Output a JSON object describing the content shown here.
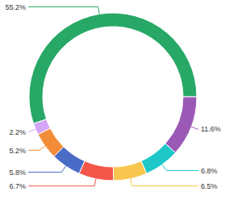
{
  "chart_data": {
    "type": "pie",
    "values": [
      55.2,
      11.6,
      6.8,
      6.5,
      6.7,
      5.8,
      5.2,
      2.2
    ],
    "value_labels": [
      "55.2%",
      "11.6%",
      "6.8%",
      "6.5%",
      "6.7%",
      "5.8%",
      "5.2%",
      "2.2%"
    ],
    "colors": [
      "#27a866",
      "#9b59b6",
      "#1ec8c8",
      "#f9c74f",
      "#f4564a",
      "#4a6cc7",
      "#f28c38",
      "#d3a4f7"
    ],
    "data_labels": true
  }
}
